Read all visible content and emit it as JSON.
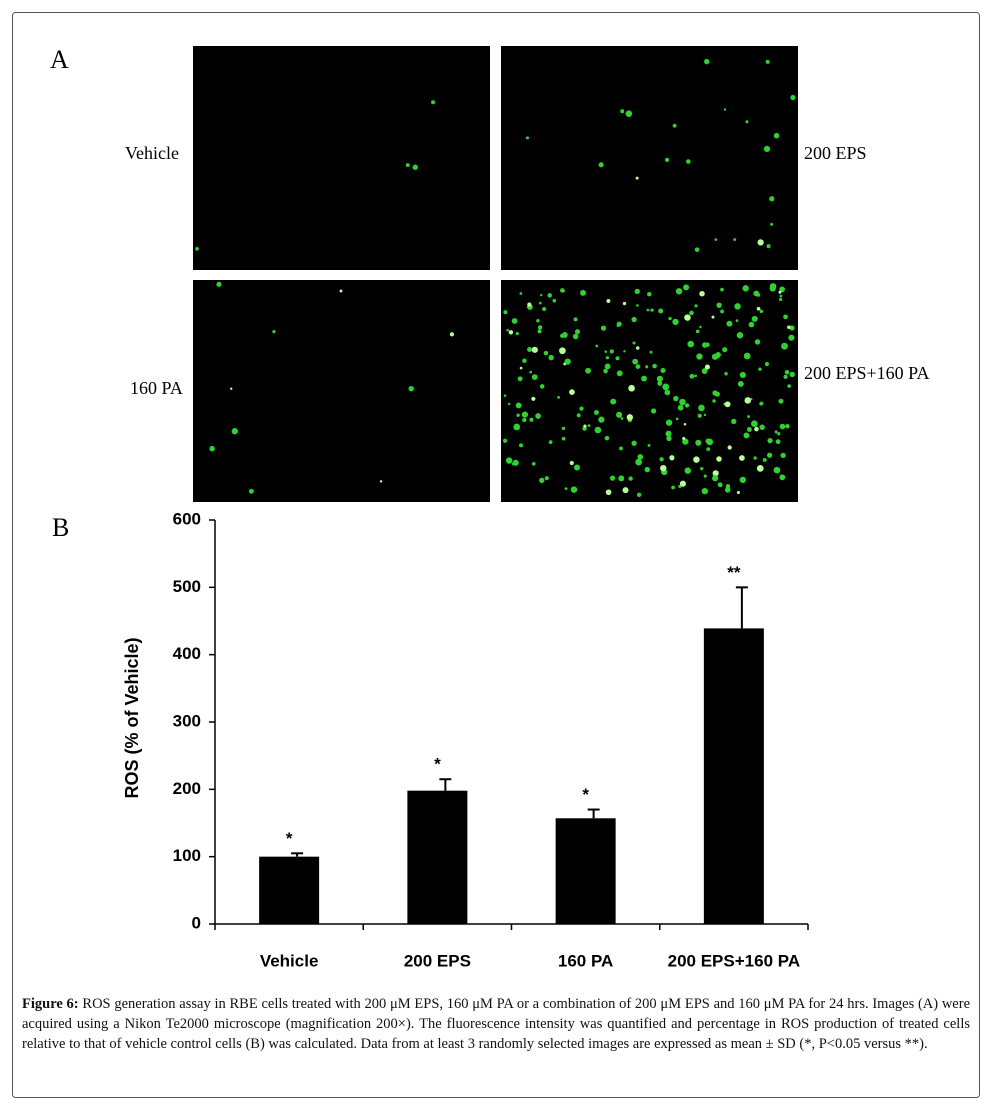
{
  "panel_a": {
    "label": "A",
    "images": [
      {
        "label": "Vehicle"
      },
      {
        "label": "200 EPS"
      },
      {
        "label": "160 PA"
      },
      {
        "label": "200 EPS+160 PA"
      }
    ]
  },
  "chart_data": {
    "type": "bar",
    "panel_label": "B",
    "ylabel": "ROS (% of Vehicle)",
    "categories": [
      "Vehicle",
      "200 EPS",
      "160 PA",
      "200 EPS+160 PA"
    ],
    "values": [
      100,
      198,
      157,
      439
    ],
    "errors": [
      5,
      17,
      13,
      61
    ],
    "annotations": [
      "*",
      "*",
      "*",
      "**"
    ],
    "color": "#000000",
    "ylim": [
      0,
      600
    ],
    "yticks": [
      0,
      100,
      200,
      300,
      400,
      500,
      600
    ],
    "grid": false
  },
  "caption": {
    "label": "Figure 6:",
    "text": "ROS generation assay in RBE cells treated with 200 μM EPS, 160 μM PA or a combination of 200 μM EPS and 160 μM PA for 24 hrs. Images (A) were acquired using a Nikon Te2000 microscope (magnification 200×). The fluorescence intensity was quantified and percentage in ROS production of treated cells relative to that of vehicle control cells (B) was calculated. Data from at least 3 randomly selected images are expressed as mean ± SD (*, P<0.05 versus **)."
  }
}
